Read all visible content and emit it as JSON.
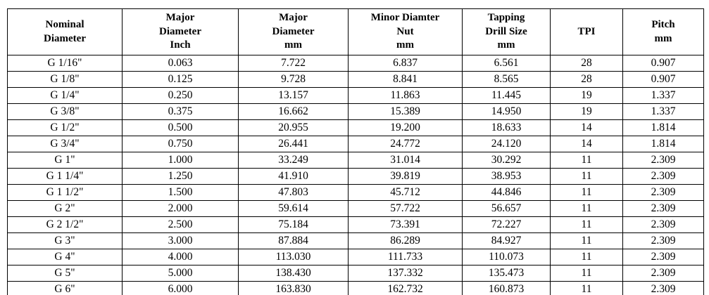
{
  "table": {
    "columns": [
      {
        "label": "Nominal\nDiameter"
      },
      {
        "label": "Major\nDiameter\nInch"
      },
      {
        "label": "Major\nDiameter\nmm"
      },
      {
        "label": "Minor Diamter\nNut\nmm"
      },
      {
        "label": "Tapping\nDrill Size\nmm"
      },
      {
        "label": "TPI"
      },
      {
        "label": "Pitch\nmm"
      }
    ],
    "rows": [
      [
        "G 1/16\"",
        "0.063",
        "7.722",
        "6.837",
        "6.561",
        "28",
        "0.907"
      ],
      [
        "G 1/8\"",
        "0.125",
        "9.728",
        "8.841",
        "8.565",
        "28",
        "0.907"
      ],
      [
        "G 1/4\"",
        "0.250",
        "13.157",
        "11.863",
        "11.445",
        "19",
        "1.337"
      ],
      [
        "G 3/8\"",
        "0.375",
        "16.662",
        "15.389",
        "14.950",
        "19",
        "1.337"
      ],
      [
        "G 1/2\"",
        "0.500",
        "20.955",
        "19.200",
        "18.633",
        "14",
        "1.814"
      ],
      [
        "G 3/4\"",
        "0.750",
        "26.441",
        "24.772",
        "24.120",
        "14",
        "1.814"
      ],
      [
        "G 1\"",
        "1.000",
        "33.249",
        "31.014",
        "30.292",
        "11",
        "2.309"
      ],
      [
        "G 1 1/4\"",
        "1.250",
        "41.910",
        "39.819",
        "38.953",
        "11",
        "2.309"
      ],
      [
        "G 1 1/2\"",
        "1.500",
        "47.803",
        "45.712",
        "44.846",
        "11",
        "2.309"
      ],
      [
        "G 2\"",
        "2.000",
        "59.614",
        "57.722",
        "56.657",
        "11",
        "2.309"
      ],
      [
        "G 2 1/2\"",
        "2.500",
        "75.184",
        "73.391",
        "72.227",
        "11",
        "2.309"
      ],
      [
        "G 3\"",
        "3.000",
        "87.884",
        "86.289",
        "84.927",
        "11",
        "2.309"
      ],
      [
        "G 4\"",
        "4.000",
        "113.030",
        "111.733",
        "110.073",
        "11",
        "2.309"
      ],
      [
        "G 5\"",
        "5.000",
        "138.430",
        "137.332",
        "135.473",
        "11",
        "2.309"
      ],
      [
        "G 6\"",
        "6.000",
        "163.830",
        "162.732",
        "160.873",
        "11",
        "2.309"
      ]
    ]
  },
  "colors": {
    "border": "#000000",
    "text": "#000000",
    "background": "#ffffff"
  }
}
